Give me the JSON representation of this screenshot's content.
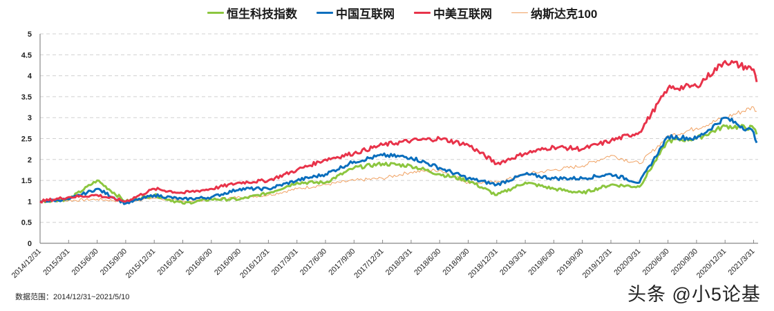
{
  "legend": [
    {
      "label": "恒生科技指数",
      "color": "#8cc63f"
    },
    {
      "label": "中国互联网",
      "color": "#0a6ebd"
    },
    {
      "label": "中美互联网",
      "color": "#e8334a"
    },
    {
      "label": "纳斯达克100",
      "color": "#f0a060"
    }
  ],
  "note": "数据范围：2014/12/31~2021/5/10",
  "watermark": "头条 @小5论基",
  "chart_data": {
    "type": "line",
    "title": "",
    "xlabel": "",
    "ylabel": "",
    "ylim": [
      0,
      5
    ],
    "yticks": [
      0,
      0.5,
      1,
      1.5,
      2,
      2.5,
      3,
      3.5,
      4,
      4.5,
      5
    ],
    "grid": "horizontal dashed",
    "legend_position": "top",
    "categories": [
      "2014/12/31",
      "2015/3/31",
      "2015/6/30",
      "2015/9/30",
      "2015/12/31",
      "2016/3/31",
      "2016/6/30",
      "2016/9/30",
      "2016/12/31",
      "2017/3/31",
      "2017/6/30",
      "2017/9/30",
      "2017/12/31",
      "2018/3/31",
      "2018/6/30",
      "2018/9/30",
      "2018/12/31",
      "2019/3/31",
      "2019/6/30",
      "2019/9/30",
      "2019/12/31",
      "2020/3/31",
      "2020/6/30",
      "2020/9/30",
      "2020/12/31",
      "2021/3/31"
    ],
    "x": [
      "2014/12/31",
      "2015/3/31",
      "2015/6/30",
      "2015/9/30",
      "2015/12/31",
      "2016/3/31",
      "2016/6/30",
      "2016/9/30",
      "2016/12/31",
      "2017/3/31",
      "2017/6/30",
      "2017/9/30",
      "2017/12/31",
      "2018/3/31",
      "2018/6/30",
      "2018/9/30",
      "2018/12/31",
      "2019/3/31",
      "2019/6/30",
      "2019/9/30",
      "2019/12/31",
      "2020/3/31",
      "2020/6/30",
      "2020/9/30",
      "2020/12/31",
      "2021/3/31",
      "2021/5/10"
    ],
    "series": [
      {
        "name": "恒生科技指数",
        "color": "#8cc63f",
        "width": 3,
        "values": [
          1.0,
          1.05,
          1.5,
          1.0,
          1.15,
          0.95,
          1.05,
          1.05,
          1.2,
          1.45,
          1.45,
          1.8,
          1.9,
          1.85,
          1.65,
          1.5,
          1.15,
          1.45,
          1.3,
          1.2,
          1.4,
          1.35,
          2.45,
          2.5,
          2.8,
          2.75,
          2.6
        ]
      },
      {
        "name": "中国互联网",
        "color": "#0a6ebd",
        "width": 3,
        "values": [
          1.0,
          1.05,
          1.3,
          0.95,
          1.15,
          1.05,
          1.1,
          1.3,
          1.3,
          1.5,
          1.65,
          1.95,
          2.1,
          2.05,
          1.8,
          1.55,
          1.4,
          1.65,
          1.55,
          1.55,
          1.65,
          1.45,
          2.55,
          2.5,
          3.0,
          2.65,
          2.4
        ]
      },
      {
        "name": "中美互联网",
        "color": "#e8334a",
        "width": 3,
        "values": [
          1.0,
          1.1,
          1.15,
          1.0,
          1.3,
          1.2,
          1.3,
          1.45,
          1.5,
          1.75,
          2.0,
          2.15,
          2.35,
          2.45,
          2.5,
          2.35,
          1.9,
          2.15,
          2.3,
          2.25,
          2.45,
          2.65,
          3.7,
          3.75,
          4.35,
          4.15,
          3.85
        ]
      },
      {
        "name": "纳斯达克100",
        "color": "#f0a060",
        "width": 1,
        "values": [
          1.0,
          1.02,
          1.05,
          1.0,
          1.08,
          1.0,
          1.05,
          1.1,
          1.15,
          1.3,
          1.4,
          1.5,
          1.55,
          1.7,
          1.75,
          1.45,
          1.45,
          1.65,
          1.75,
          1.85,
          2.1,
          1.9,
          2.55,
          2.75,
          3.0,
          3.25,
          3.15
        ]
      }
    ]
  }
}
